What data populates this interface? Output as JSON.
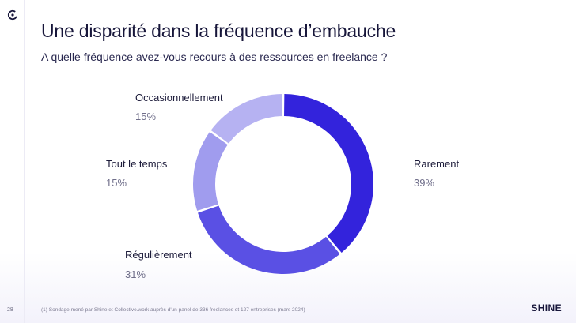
{
  "title": "Une disparité dans la fréquence d’embauche",
  "subtitle": "A quelle fréquence avez-vous recours à des ressources en freelance ?",
  "page_number": "28",
  "footnote": "(1) Sondage mené par Shine et Collective.work auprès d'un panel de 336 freelances et 127 entreprises (mars 2024)",
  "brand": "SHINE",
  "icons": {
    "logo": "circle-c-logo-icon"
  },
  "chart_data": {
    "type": "pie",
    "donut": true,
    "title": "",
    "categories": [
      "Rarement",
      "Régulièrement",
      "Tout le temps",
      "Occasionnellement"
    ],
    "values": [
      39,
      31,
      15,
      15
    ],
    "value_labels": [
      "39%",
      "31%",
      "15%",
      "15%"
    ],
    "colors": [
      "#3323dc",
      "#5a50e4",
      "#a09cee",
      "#b6b2f2"
    ]
  }
}
